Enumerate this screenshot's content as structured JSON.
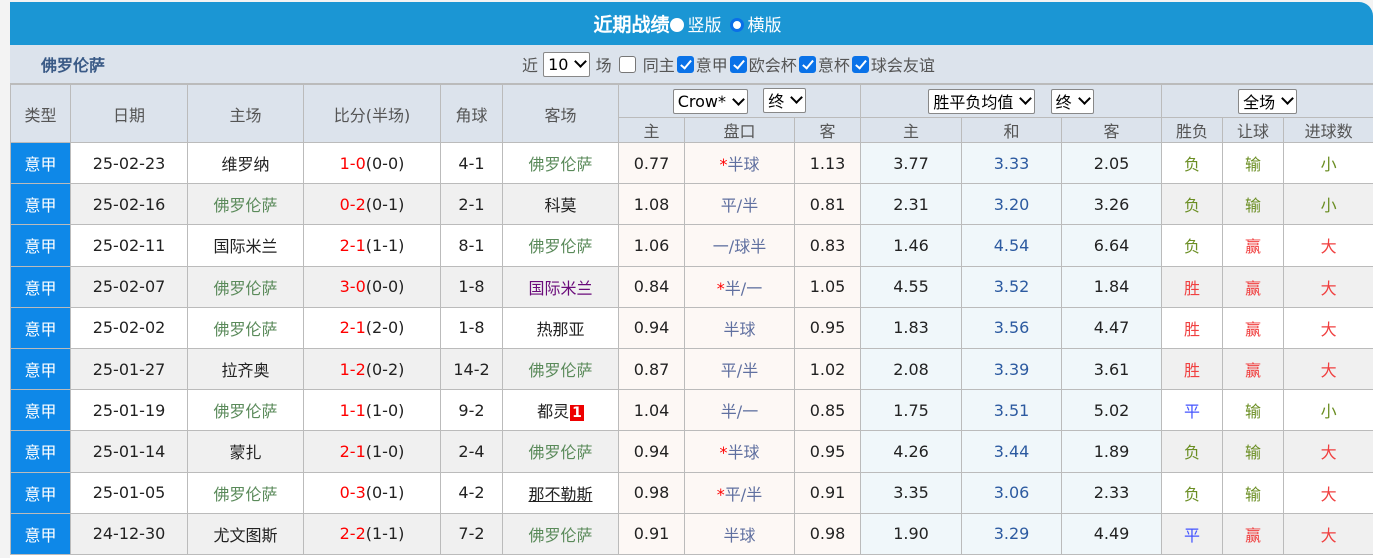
{
  "header": {
    "title": "近期战绩",
    "radio_vertical": "竖版",
    "radio_horizontal": "横版",
    "selected": "横版"
  },
  "team": "佛罗伦萨",
  "filters": {
    "prefix": "近",
    "count": "10",
    "suffix": "场",
    "same_home": {
      "label": "同主",
      "checked": false
    },
    "competitions": [
      {
        "label": "意甲",
        "checked": true
      },
      {
        "label": "欧会杯",
        "checked": true
      },
      {
        "label": "意杯",
        "checked": true
      },
      {
        "label": "球会友谊",
        "checked": true
      }
    ]
  },
  "columns": {
    "type": "类型",
    "date": "日期",
    "home": "主场",
    "score": "比分(半场)",
    "corner": "角球",
    "away": "客场",
    "handicap_company": "Crow*",
    "handicap_time": "终",
    "avg_select": "胜平负均值",
    "avg_time": "终",
    "scope": "全场",
    "h_home": "主",
    "h_line": "盘口",
    "h_away": "客",
    "a_home": "主",
    "a_draw": "和",
    "a_away": "客",
    "result": "胜负",
    "ah_result": "让球",
    "ou_result": "进球数"
  },
  "rows": [
    {
      "type": "意甲",
      "date": "25-02-23",
      "home": "维罗纳",
      "ft": "1-0",
      "ht": "(0-0)",
      "corner": "4-1",
      "away": "佛罗伦萨",
      "h_home": "0.77",
      "star": "*",
      "line": "半球",
      "h_away": "1.13",
      "a_home": "3.77",
      "a_draw": "3.33",
      "a_away": "2.05",
      "result": "负",
      "ah": "输",
      "ou": "小"
    },
    {
      "type": "意甲",
      "date": "25-02-16",
      "home": "佛罗伦萨",
      "ft": "0-2",
      "ht": "(0-1)",
      "corner": "2-1",
      "away": "科莫",
      "h_home": "1.08",
      "star": "",
      "line": "平/半",
      "h_away": "0.81",
      "a_home": "2.31",
      "a_draw": "3.20",
      "a_away": "3.26",
      "result": "负",
      "ah": "输",
      "ou": "小"
    },
    {
      "type": "意甲",
      "date": "25-02-11",
      "home": "国际米兰",
      "ft": "2-1",
      "ht": "(1-1)",
      "corner": "8-1",
      "away": "佛罗伦萨",
      "h_home": "1.06",
      "star": "",
      "line": "一/球半",
      "h_away": "0.83",
      "a_home": "1.46",
      "a_draw": "4.54",
      "a_away": "6.64",
      "result": "负",
      "ah": "赢",
      "ou": "大"
    },
    {
      "type": "意甲",
      "date": "25-02-07",
      "home": "佛罗伦萨",
      "ft": "3-0",
      "ht": "(0-0)",
      "corner": "1-8",
      "away": "国际米兰",
      "h_home": "0.84",
      "star": "*",
      "line": "半/一",
      "h_away": "1.05",
      "a_home": "4.55",
      "a_draw": "3.52",
      "a_away": "1.84",
      "result": "胜",
      "ah": "赢",
      "ou": "大"
    },
    {
      "type": "意甲",
      "date": "25-02-02",
      "home": "佛罗伦萨",
      "ft": "2-1",
      "ht": "(2-0)",
      "corner": "1-8",
      "away": "热那亚",
      "h_home": "0.94",
      "star": "",
      "line": "半球",
      "h_away": "0.95",
      "a_home": "1.83",
      "a_draw": "3.56",
      "a_away": "4.47",
      "result": "胜",
      "ah": "赢",
      "ou": "大"
    },
    {
      "type": "意甲",
      "date": "25-01-27",
      "home": "拉齐奥",
      "ft": "1-2",
      "ht": "(0-2)",
      "corner": "14-2",
      "away": "佛罗伦萨",
      "h_home": "0.87",
      "star": "",
      "line": "平/半",
      "h_away": "1.02",
      "a_home": "2.08",
      "a_draw": "3.39",
      "a_away": "3.61",
      "result": "胜",
      "ah": "赢",
      "ou": "大"
    },
    {
      "type": "意甲",
      "date": "25-01-19",
      "home": "佛罗伦萨",
      "ft": "1-1",
      "ht": "(1-0)",
      "corner": "9-2",
      "away": "都灵",
      "red_card": "1",
      "h_home": "1.04",
      "star": "",
      "line": "半/一",
      "h_away": "0.85",
      "a_home": "1.75",
      "a_draw": "3.51",
      "a_away": "5.02",
      "result": "平",
      "ah": "输",
      "ou": "小"
    },
    {
      "type": "意甲",
      "date": "25-01-14",
      "home": "蒙扎",
      "ft": "2-1",
      "ht": "(1-0)",
      "corner": "2-4",
      "away": "佛罗伦萨",
      "h_home": "0.94",
      "star": "*",
      "line": "半球",
      "h_away": "0.95",
      "a_home": "4.26",
      "a_draw": "3.44",
      "a_away": "1.89",
      "result": "负",
      "ah": "输",
      "ou": "大"
    },
    {
      "type": "意甲",
      "date": "25-01-05",
      "home": "佛罗伦萨",
      "ft": "0-3",
      "ht": "(0-1)",
      "corner": "4-2",
      "away": "那不勒斯",
      "h_home": "0.98",
      "star": "*",
      "line": "平/半",
      "h_away": "0.91",
      "a_home": "3.35",
      "a_draw": "3.06",
      "a_away": "2.33",
      "result": "负",
      "ah": "输",
      "ou": "大"
    },
    {
      "type": "意甲",
      "date": "24-12-30",
      "home": "尤文图斯",
      "ft": "2-2",
      "ht": "(1-1)",
      "corner": "7-2",
      "away": "佛罗伦萨",
      "h_home": "0.91",
      "star": "",
      "line": "半球",
      "h_away": "0.98",
      "a_home": "1.90",
      "a_draw": "3.29",
      "a_away": "4.49",
      "result": "平",
      "ah": "赢",
      "ou": "大"
    }
  ],
  "colors": {
    "title_bar": "#1b96d4",
    "type_cell": "#0e88e8",
    "win": "#f04040",
    "lose": "#6b8e23",
    "draw": "#4455ff",
    "score": "#ff0000"
  }
}
